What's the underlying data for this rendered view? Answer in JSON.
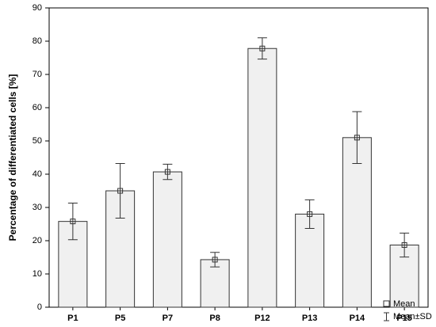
{
  "chart_data": {
    "type": "bar",
    "y_label": "Percentage of differentiated cells [%]",
    "categories": [
      "P1",
      "P5",
      "P7",
      "P8",
      "P12",
      "P13",
      "P14",
      "P15"
    ],
    "values": [
      25.8,
      35,
      40.7,
      14.3,
      77.8,
      28,
      51,
      18.7
    ],
    "errors": [
      5.5,
      8.2,
      2.3,
      2.2,
      3.2,
      4.3,
      7.8,
      3.6
    ],
    "color": "#f0f0f0",
    "ylim": [
      0,
      90
    ],
    "yticks": [
      0,
      10,
      20,
      30,
      40,
      50,
      60,
      70,
      80,
      90
    ],
    "legend": {
      "mean": "Mean",
      "sd": "Mean±SD"
    }
  }
}
